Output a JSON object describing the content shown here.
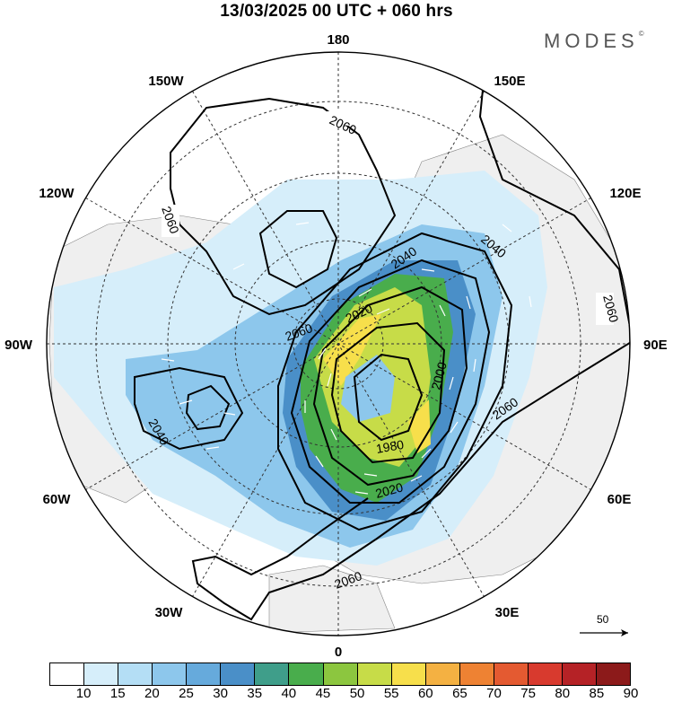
{
  "header": {
    "title": "13/03/2025  00 UTC  + 060 hrs",
    "brand": "MODES",
    "brand_mark": "©"
  },
  "map": {
    "projection": "north-polar-stereographic",
    "longitude_labels": [
      "180",
      "150E",
      "120E",
      "90E",
      "60E",
      "30E",
      "0",
      "30W",
      "60W",
      "90W",
      "120W",
      "150W"
    ],
    "contour_labels": [
      "2060",
      "2060",
      "2060",
      "2060",
      "2060",
      "2060",
      "2040",
      "2040",
      "2040",
      "2020",
      "2020",
      "2000",
      "1980"
    ],
    "shading_colors": {
      "10": "#ffffff",
      "15": "#d6eefa",
      "20": "#b4def5",
      "25": "#8dc7ec",
      "30": "#66aadc",
      "35": "#4a8fc8",
      "40": "#3f9e8a",
      "45": "#49ad4c",
      "50": "#8cc63f",
      "55": "#c7dc48",
      "60": "#f7df4b",
      "65": "#f4b142",
      "70": "#ee8233",
      "75": "#e45a31",
      "80": "#d83a2e",
      "85": "#b52226",
      "90": "#8c1a1a"
    },
    "land_color": "#f0f0f0",
    "reference_vector_label": "50"
  },
  "colorbar": {
    "labels": [
      "10",
      "15",
      "20",
      "25",
      "30",
      "35",
      "40",
      "45",
      "50",
      "55",
      "60",
      "65",
      "70",
      "75",
      "80",
      "85",
      "90"
    ],
    "colors": [
      "#ffffff",
      "#d6eefa",
      "#b4def5",
      "#8dc7ec",
      "#66aadc",
      "#4a8fc8",
      "#3f9e8a",
      "#49ad4c",
      "#8cc63f",
      "#c7dc48",
      "#f7df4b",
      "#f4b142",
      "#ee8233",
      "#e45a31",
      "#d83a2e",
      "#b52226",
      "#8c1a1a"
    ]
  }
}
